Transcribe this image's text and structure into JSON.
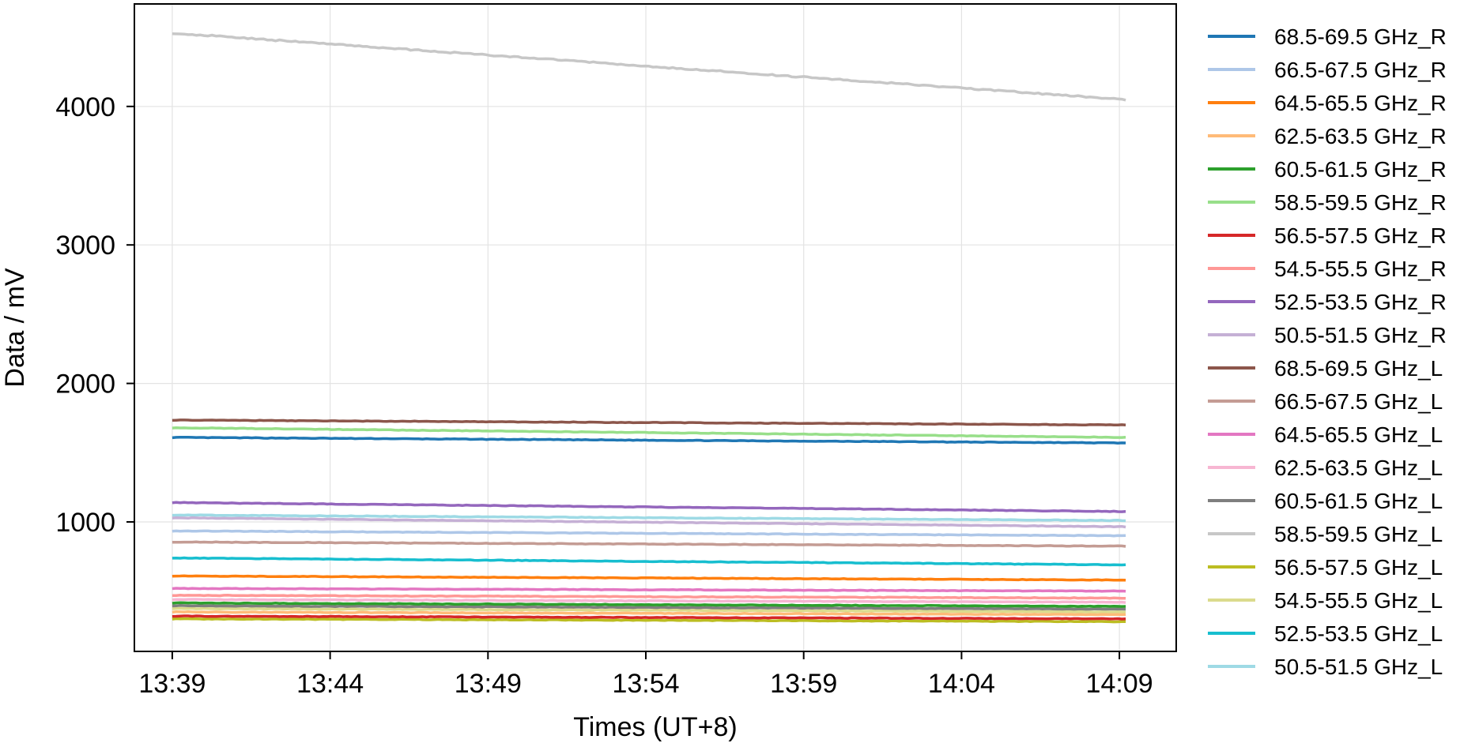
{
  "chart_data": {
    "type": "line",
    "xlabel": "Times (UT+8)",
    "ylabel": "Data / mV",
    "x_ticks": [
      "13:39",
      "13:44",
      "13:49",
      "13:54",
      "13:59",
      "14:04",
      "14:09"
    ],
    "x_tick_minutes": [
      0,
      5,
      10,
      15,
      20,
      25,
      30
    ],
    "xlim_minutes": [
      -1.2,
      31.8
    ],
    "y_ticks": [
      1000,
      2000,
      3000,
      4000
    ],
    "ylim": [
      65,
      4740
    ],
    "grid": true,
    "legend_position": "outside right",
    "series": [
      {
        "name": "68.5-69.5 GHz_R",
        "color": "#1f77b4",
        "start": 1610,
        "end": 1570
      },
      {
        "name": "66.5-67.5 GHz_R",
        "color": "#aec7e8",
        "start": 935,
        "end": 900
      },
      {
        "name": "64.5-65.5 GHz_R",
        "color": "#ff7f0e",
        "start": 610,
        "end": 580
      },
      {
        "name": "62.5-63.5 GHz_R",
        "color": "#ffbb78",
        "start": 350,
        "end": 330
      },
      {
        "name": "60.5-61.5 GHz_R",
        "color": "#2ca02c",
        "start": 415,
        "end": 390
      },
      {
        "name": "58.5-59.5 GHz_R",
        "color": "#98df8a",
        "start": 1680,
        "end": 1610
      },
      {
        "name": "56.5-57.5 GHz_R",
        "color": "#d62728",
        "start": 320,
        "end": 300
      },
      {
        "name": "54.5-55.5 GHz_R",
        "color": "#ff9896",
        "start": 470,
        "end": 450
      },
      {
        "name": "52.5-53.5 GHz_R",
        "color": "#9467bd",
        "start": 1140,
        "end": 1075
      },
      {
        "name": "50.5-51.5 GHz_R",
        "color": "#c5b0d5",
        "start": 1030,
        "end": 965
      },
      {
        "name": "68.5-69.5 GHz_L",
        "color": "#8c564b",
        "start": 1735,
        "end": 1700
      },
      {
        "name": "66.5-67.5 GHz_L",
        "color": "#c49c94",
        "start": 855,
        "end": 825
      },
      {
        "name": "64.5-65.5 GHz_L",
        "color": "#e377c2",
        "start": 520,
        "end": 500
      },
      {
        "name": "62.5-63.5 GHz_L",
        "color": "#f7b6d2",
        "start": 440,
        "end": 420
      },
      {
        "name": "60.5-61.5 GHz_L",
        "color": "#7f7f7f",
        "start": 395,
        "end": 370
      },
      {
        "name": "58.5-59.5 GHz_L",
        "color": "#c7c7c7",
        "start": 4530,
        "end": 4050
      },
      {
        "name": "56.5-57.5 GHz_L",
        "color": "#bcbd22",
        "start": 300,
        "end": 280
      },
      {
        "name": "54.5-55.5 GHz_L",
        "color": "#dbdb8d",
        "start": 375,
        "end": 350
      },
      {
        "name": "52.5-53.5 GHz_L",
        "color": "#17becf",
        "start": 740,
        "end": 690
      },
      {
        "name": "50.5-51.5 GHz_L",
        "color": "#9edae5",
        "start": 1050,
        "end": 1010
      }
    ]
  }
}
